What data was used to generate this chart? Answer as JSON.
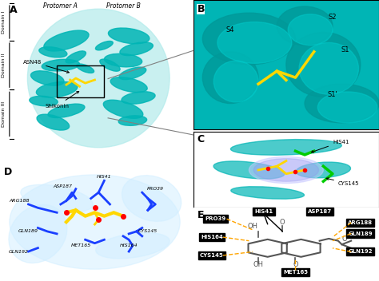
{
  "panel_labels": [
    "A",
    "B",
    "C",
    "D",
    "E"
  ],
  "bg_color": "#ffffff",
  "teal_color": "#00b5b5",
  "teal_light": "#b2ebeb",
  "yellow_color": "#ffd700",
  "blue_color": "#1a3fff",
  "domain_labels": [
    "Domain I",
    "Domain II",
    "Domain III"
  ],
  "protomer_labels": [
    "Protomer A",
    "Protomer B"
  ],
  "annotation_labels": [
    "ASN48",
    "Shikonin"
  ],
  "residue_labels_D": [
    "HIS41",
    "ASP187",
    "PRO39",
    "ARG188",
    "GLN189",
    "GLN192",
    "MET165",
    "HIS164",
    "CYS145"
  ],
  "residue_labels_E_left": [
    "PRO39",
    "HIS164",
    "CYS145"
  ],
  "residue_labels_E_right": [
    "ARG188",
    "GLN189",
    "GLN192"
  ],
  "residue_labels_E_top": [
    "HIS41",
    "ASP187"
  ],
  "residue_labels_E_bottom": [
    "MET165"
  ],
  "bond_color_solid": "#000000",
  "bond_color_dash": "#ffa500",
  "molecule_color": "#808080",
  "box_fill": "#000000",
  "text_color_white": "#ffffff",
  "B_labels": [
    "S2",
    "S1",
    "S4",
    "S1'"
  ],
  "C_labels": [
    "HIS41",
    "CYS145"
  ]
}
